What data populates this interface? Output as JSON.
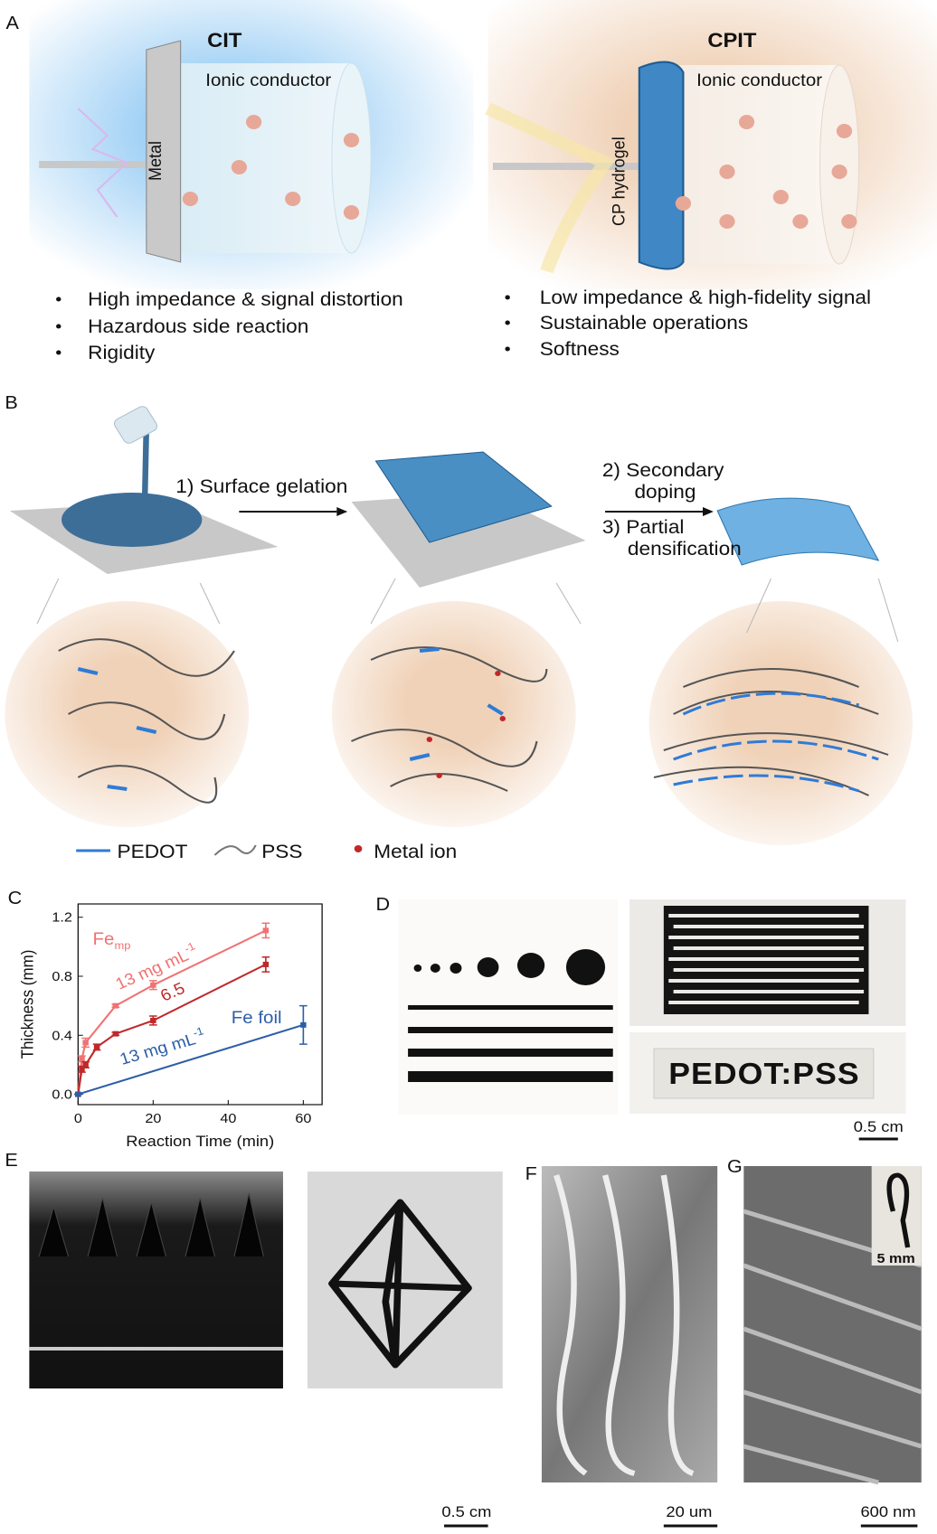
{
  "panels": {
    "A": {
      "label": "A",
      "cit": {
        "title": "CIT",
        "conductor": "Ionic conductor",
        "electrode": "Metal",
        "bullets": [
          "High impedance & signal distortion",
          "Hazardous side reaction",
          "Rigidity"
        ]
      },
      "cpit": {
        "title": "CPIT",
        "conductor": "Ionic conductor",
        "electrode": "CP hydrogel",
        "bullets": [
          "Low impedance & high-fidelity signal",
          "Sustainable operations",
          "Softness"
        ]
      }
    },
    "B": {
      "label": "B",
      "step1": "1) Surface gelation",
      "step2": [
        "2) Secondary",
        "doping"
      ],
      "step3": [
        "3) Partial",
        "densification"
      ],
      "legend": [
        "PEDOT",
        "PSS",
        "Metal ion"
      ]
    },
    "C": {
      "label": "C"
    },
    "D": {
      "label": "D",
      "print_text": "PEDOT:PSS",
      "scale": "0.5 cm"
    },
    "E": {
      "label": "E",
      "scale": "0.5 cm"
    },
    "F": {
      "label": "F",
      "scale": "20 um"
    },
    "G": {
      "label": "G",
      "inset_scale": "5 mm",
      "scale": "600 nm"
    }
  },
  "chart_data": {
    "type": "line",
    "xlabel": "Reaction Time (min)",
    "ylabel": "Thickness (mm)",
    "xlim": [
      0,
      65
    ],
    "ylim": [
      -0.07,
      1.29
    ],
    "xticks": [
      0,
      20,
      40,
      60
    ],
    "yticks": [
      {
        "value": 0,
        "label": "0.0"
      },
      0.4,
      0.8,
      1.2
    ],
    "series": [
      {
        "color": "#f07272",
        "x": [
          0,
          1,
          2,
          10,
          20,
          50
        ],
        "values": [
          0,
          0.24,
          0.35,
          0.6,
          0.74,
          1.11
        ],
        "errors": [
          0,
          0.02,
          0.03,
          0.01,
          0.03,
          0.05
        ]
      },
      {
        "color": "#c0282a",
        "x": [
          0,
          1,
          2,
          5,
          10,
          20,
          50
        ],
        "values": [
          0,
          0.17,
          0.2,
          0.32,
          0.41,
          0.5,
          0.88
        ],
        "errors": [
          0,
          0.02,
          0.02,
          0.02,
          0.01,
          0.03,
          0.05
        ]
      },
      {
        "color": "#2c5ea8",
        "x": [
          0,
          60
        ],
        "values": [
          0,
          0.47
        ],
        "errors": [
          0,
          0.13
        ]
      }
    ],
    "annotations": [
      {
        "text": "Fe",
        "sub": "mp"
      },
      {
        "text": "13 mg mL",
        "sup": "-1"
      },
      {
        "text": "6.5"
      },
      {
        "text": "Fe foil"
      },
      {
        "text": "13 mg mL",
        "sup": "-1"
      }
    ]
  }
}
